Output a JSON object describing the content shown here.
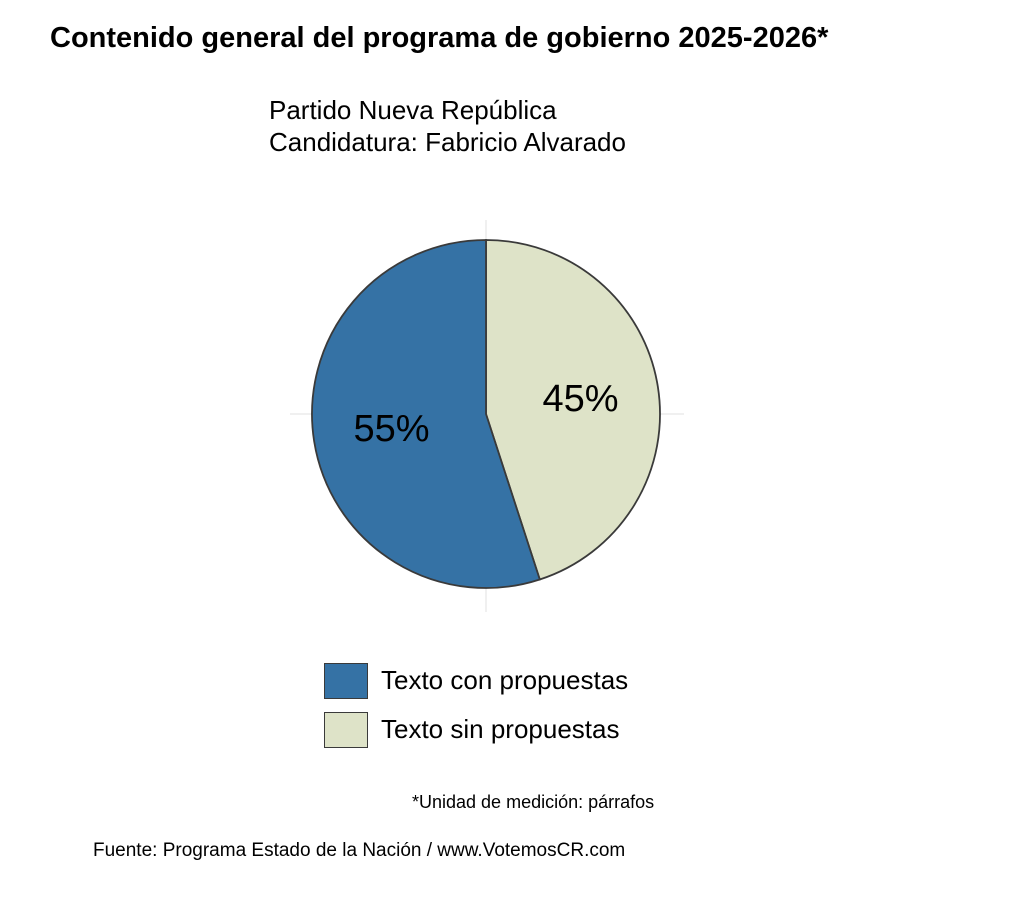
{
  "chart_data": {
    "type": "pie",
    "title": "Contenido general del programa de gobierno 2025-2026*",
    "subtitle_lines": [
      "Partido Nueva República",
      "Candidatura: Fabricio Alvarado"
    ],
    "categories": [
      "Texto con propuestas",
      "Texto sin propuestas"
    ],
    "values": [
      55,
      45
    ],
    "labels": [
      "55%",
      "45%"
    ],
    "colors": [
      "#3572a5",
      "#dee3c8"
    ],
    "legend_position": "bottom",
    "grid": true
  },
  "footer": {
    "note": "*Unidad de medición: párrafos",
    "source": "Fuente: Programa Estado de la Nación / www.VotemosCR.com"
  }
}
